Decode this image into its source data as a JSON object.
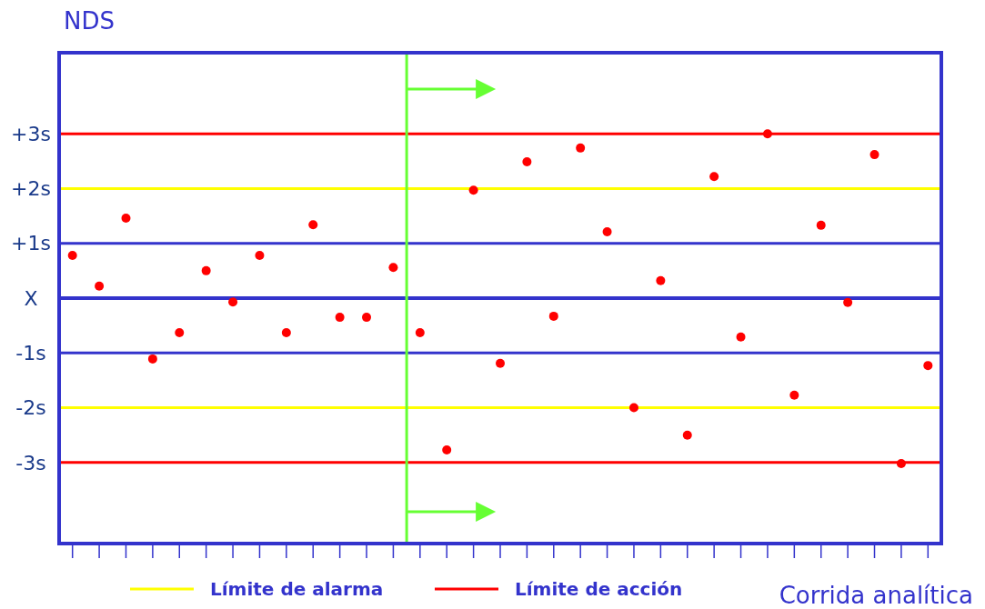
{
  "chart_data": {
    "type": "scatter",
    "ylabel": "NDS",
    "xlabel": "Corrida analítica",
    "categories": [
      null,
      null,
      null,
      null,
      null,
      null,
      null,
      null,
      null,
      null,
      null,
      null,
      null,
      null,
      null,
      null,
      null,
      null,
      null,
      null,
      null,
      null,
      null,
      null,
      null,
      null,
      null,
      null,
      null,
      null,
      null,
      null,
      null
    ],
    "series": [
      {
        "color": "#ff0000",
        "values": [
          0.78,
          0.22,
          1.46,
          -1.11,
          -0.63,
          0.5,
          -0.07,
          0.78,
          -0.63,
          1.34,
          -0.35,
          -0.35,
          0.56,
          -0.63,
          -2.77,
          1.97,
          -1.19,
          2.49,
          -0.33,
          2.74,
          1.21,
          -2.0,
          0.32,
          -2.5,
          2.22,
          -0.71,
          3.0,
          -1.77,
          1.33,
          -0.08,
          2.62,
          -3.02,
          -1.23
        ]
      }
    ],
    "marker": "circle",
    "legend": "bottom",
    "ylim": [
      -4.48,
      4.48
    ],
    "yticks": [
      {
        "value": 3,
        "label": "+3s"
      },
      {
        "value": 2,
        "label": "+2s"
      },
      {
        "value": 1,
        "label": "+1s"
      },
      {
        "value": 0,
        "label": "X"
      },
      {
        "value": -1,
        "label": "-1s"
      },
      {
        "value": -2,
        "label": "-2s"
      },
      {
        "value": -3,
        "label": "-3s"
      }
    ],
    "ref_lines": [
      {
        "axis": "y",
        "value": 1,
        "color": "#3333cc"
      },
      {
        "axis": "y",
        "value": 0,
        "color": "#3333cc"
      },
      {
        "axis": "y",
        "value": -1,
        "color": "#3333cc"
      },
      {
        "axis": "y",
        "value": 2,
        "label": "Límite de alarma",
        "color": "#ffff00"
      },
      {
        "axis": "y",
        "value": -2,
        "color": "#ffff00"
      },
      {
        "axis": "y",
        "value": 3,
        "label": "Límite de acción",
        "color": "#ff0000"
      },
      {
        "axis": "y",
        "value": -3,
        "color": "#ff0000"
      }
    ]
  }
}
